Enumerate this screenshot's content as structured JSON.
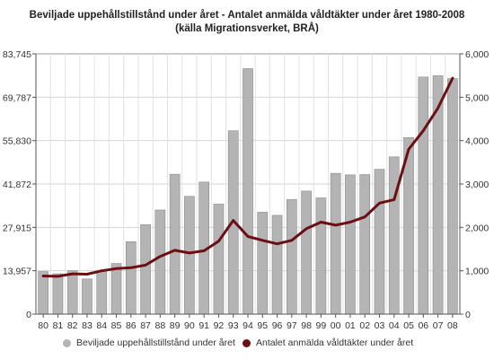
{
  "chart_data": {
    "type": "bar+line",
    "title_line1": "Beviljade uppehållstillstånd under året - Antalet anmälda våldtäkter under året 1980-2008",
    "title_line2": "(källa Migrationsverket, BRÅ)",
    "categories": [
      "80",
      "81",
      "82",
      "83",
      "84",
      "85",
      "86",
      "87",
      "88",
      "89",
      "90",
      "91",
      "92",
      "93",
      "94",
      "95",
      "96",
      "97",
      "98",
      "99",
      "00",
      "01",
      "02",
      "03",
      "04",
      "05",
      "06",
      "07",
      "08"
    ],
    "left_axis": {
      "ylim": [
        0,
        83745
      ],
      "ticks": [
        0,
        13957,
        27915,
        41872,
        55830,
        69787,
        83745
      ],
      "tick_labels": [
        "0",
        "13,957",
        "27,915",
        "41,872",
        "55,830",
        "69,787",
        "83,745"
      ]
    },
    "right_axis": {
      "ylim": [
        0,
        6000
      ],
      "ticks": [
        0,
        1000,
        2000,
        3000,
        4000,
        5000,
        6000
      ],
      "tick_labels": [
        "0",
        "1,000",
        "2,000",
        "3,000",
        "4,000",
        "5,000",
        "6,000"
      ]
    },
    "series": [
      {
        "name": "Beviljade uppehållstillstånd under året",
        "type": "bar",
        "axis": "left",
        "color": "#b4b4b4",
        "values": [
          13700,
          13000,
          14000,
          11300,
          13900,
          16300,
          23300,
          28800,
          33500,
          45000,
          37900,
          42500,
          35400,
          59000,
          79000,
          32800,
          31800,
          36900,
          39600,
          37400,
          45300,
          44800,
          44900,
          46600,
          50600,
          56800,
          76300,
          76700,
          75800
        ]
      },
      {
        "name": "Antalet anmälda våldtäkter under året",
        "type": "line",
        "axis": "right",
        "color": "#6b0f14",
        "values": [
          880,
          870,
          930,
          920,
          1000,
          1050,
          1070,
          1130,
          1330,
          1470,
          1410,
          1460,
          1680,
          2160,
          1790,
          1700,
          1620,
          1700,
          1970,
          2120,
          2050,
          2120,
          2240,
          2560,
          2640,
          3800,
          4230,
          4750,
          5440
        ]
      }
    ],
    "grid": true,
    "legend_position": "bottom"
  }
}
